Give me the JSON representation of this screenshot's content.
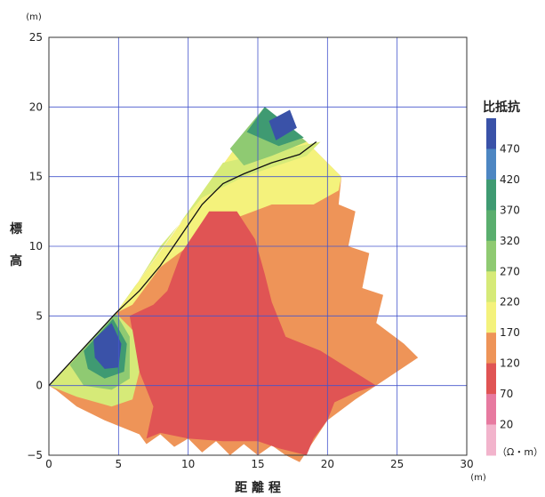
{
  "chart_data": {
    "type": "heatmap",
    "title": "",
    "xlabel": "距 離 程",
    "ylabel": "標\n高",
    "x_unit": "(m)",
    "y_unit": "(m)",
    "xlim": [
      0,
      30
    ],
    "ylim": [
      -5,
      25
    ],
    "x_ticks": [
      "0",
      "5",
      "10",
      "15",
      "20",
      "25",
      "30"
    ],
    "y_ticks": [
      "−5",
      "0",
      "5",
      "10",
      "15",
      "20",
      "25"
    ],
    "grid": true,
    "colorbar": {
      "title": "比抵抗",
      "unit": "（Ω・m）",
      "labels": [
        "470",
        "420",
        "370",
        "320",
        "270",
        "220",
        "170",
        "120",
        "70",
        "20"
      ],
      "colors": [
        "#3a52a8",
        "#4d86c2",
        "#3f9a72",
        "#5aae6e",
        "#8fca72",
        "#d6ea78",
        "#f4f27c",
        "#ee9458",
        "#e05454",
        "#e77aa0",
        "#f2b4cc"
      ]
    },
    "regions": [
      {
        "level": 120,
        "color": "#ee9458",
        "polygon": [
          [
            0,
            0
          ],
          [
            4.8,
            5.2
          ],
          [
            15.5,
            20
          ],
          [
            18.5,
            17.5
          ],
          [
            21,
            15
          ],
          [
            20.8,
            13
          ],
          [
            22,
            12.5
          ],
          [
            21.5,
            10
          ],
          [
            23,
            9.5
          ],
          [
            22.5,
            7
          ],
          [
            24,
            6.5
          ],
          [
            23.5,
            4.5
          ],
          [
            25.5,
            3
          ],
          [
            26.5,
            2
          ],
          [
            22,
            -1
          ],
          [
            20,
            -2.5
          ],
          [
            19,
            -4
          ],
          [
            18,
            -5.5
          ],
          [
            17,
            -5
          ],
          [
            16,
            -4.3
          ],
          [
            15,
            -5
          ],
          [
            14,
            -4.2
          ],
          [
            13,
            -5
          ],
          [
            12,
            -4
          ],
          [
            11,
            -4.8
          ],
          [
            10,
            -3.8
          ],
          [
            9,
            -4.4
          ],
          [
            8,
            -3.5
          ],
          [
            7,
            -4.2
          ],
          [
            6.5,
            -3.5
          ],
          [
            4,
            -2.5
          ],
          [
            2,
            -1.5
          ],
          [
            0.5,
            -0.3
          ]
        ]
      },
      {
        "level": 170,
        "color": "#f4f27c",
        "polygon": [
          [
            4.8,
            5.2
          ],
          [
            15.5,
            20
          ],
          [
            18.5,
            17.5
          ],
          [
            21,
            15
          ],
          [
            20.8,
            14
          ],
          [
            19,
            13
          ],
          [
            16,
            13
          ],
          [
            12,
            11.5
          ],
          [
            8,
            8.5
          ],
          [
            6,
            5.8
          ]
        ]
      },
      {
        "level": 220,
        "color": "#d6ea78",
        "polygon": [
          [
            4.8,
            5.2
          ],
          [
            12.5,
            16
          ],
          [
            17,
            17
          ],
          [
            19.5,
            17.5
          ],
          [
            18.5,
            16.5
          ],
          [
            14,
            15
          ],
          [
            11,
            13.5
          ],
          [
            8,
            10
          ],
          [
            6,
            6.8
          ]
        ]
      },
      {
        "level": 270,
        "color": "#8fca72",
        "polygon": [
          [
            13,
            17
          ],
          [
            15.5,
            20
          ],
          [
            18.5,
            17.5
          ],
          [
            16,
            16.5
          ],
          [
            14,
            15.8
          ]
        ]
      },
      {
        "level": 370,
        "color": "#3f9a72",
        "polygon": [
          [
            14.2,
            18.2
          ],
          [
            15.5,
            20
          ],
          [
            18.3,
            17.8
          ],
          [
            16.5,
            17.2
          ]
        ]
      },
      {
        "level": 470,
        "color": "#3a52a8",
        "polygon": [
          [
            15.8,
            19
          ],
          [
            17.3,
            19.8
          ],
          [
            17.8,
            18.5
          ],
          [
            16.3,
            17.6
          ]
        ]
      },
      {
        "level": 70,
        "color": "#e05454",
        "polygon": [
          [
            11.5,
            12.5
          ],
          [
            13.5,
            12.5
          ],
          [
            14.8,
            10.5
          ],
          [
            15.5,
            8
          ],
          [
            16,
            6
          ],
          [
            17,
            3.5
          ],
          [
            19.5,
            2.5
          ],
          [
            23.5,
            0
          ],
          [
            22,
            -0.5
          ],
          [
            20.5,
            -1.2
          ],
          [
            20,
            -2.5
          ],
          [
            19,
            -3.8
          ],
          [
            18.5,
            -5
          ],
          [
            16.5,
            -4.5
          ],
          [
            15,
            -4
          ],
          [
            12.5,
            -4
          ],
          [
            10,
            -3.8
          ],
          [
            8,
            -3.4
          ],
          [
            7,
            -3.8
          ],
          [
            7.5,
            -1.5
          ],
          [
            6.5,
            1
          ],
          [
            5.8,
            5
          ],
          [
            7.5,
            5.8
          ],
          [
            8.5,
            6.8
          ],
          [
            9.5,
            9.5
          ],
          [
            10.5,
            11
          ]
        ]
      },
      {
        "level": 220,
        "color": "#d6ea78",
        "polygon": [
          [
            0,
            0
          ],
          [
            4.8,
            5.2
          ],
          [
            6,
            4
          ],
          [
            6.5,
            1
          ],
          [
            6,
            -1
          ],
          [
            4.5,
            -1.5
          ],
          [
            2,
            -0.8
          ]
        ]
      },
      {
        "level": 270,
        "color": "#8fca72",
        "polygon": [
          [
            1.5,
            1.5
          ],
          [
            4.8,
            5.2
          ],
          [
            5.8,
            3.5
          ],
          [
            5.8,
            0.5
          ],
          [
            4.5,
            -0.3
          ],
          [
            2.5,
            0
          ]
        ]
      },
      {
        "level": 370,
        "color": "#3f9a72",
        "polygon": [
          [
            2.5,
            2.5
          ],
          [
            4.6,
            4.8
          ],
          [
            5.6,
            3
          ],
          [
            5.4,
            1
          ],
          [
            4,
            0.5
          ],
          [
            2.8,
            1.2
          ]
        ]
      },
      {
        "level": 470,
        "color": "#3a52a8",
        "polygon": [
          [
            3.2,
            3.3
          ],
          [
            4.5,
            4.5
          ],
          [
            5.2,
            3
          ],
          [
            5,
            1.3
          ],
          [
            4,
            1.2
          ],
          [
            3.3,
            2
          ]
        ]
      }
    ],
    "boundary_line": [
      [
        0,
        0
      ],
      [
        4.8,
        5.2
      ],
      [
        6.5,
        6.8
      ],
      [
        8,
        8.6
      ],
      [
        9.5,
        10.8
      ],
      [
        11,
        13
      ],
      [
        12.5,
        14.5
      ],
      [
        14,
        15.2
      ],
      [
        16,
        16
      ],
      [
        18,
        16.6
      ],
      [
        19.2,
        17.5
      ]
    ]
  }
}
